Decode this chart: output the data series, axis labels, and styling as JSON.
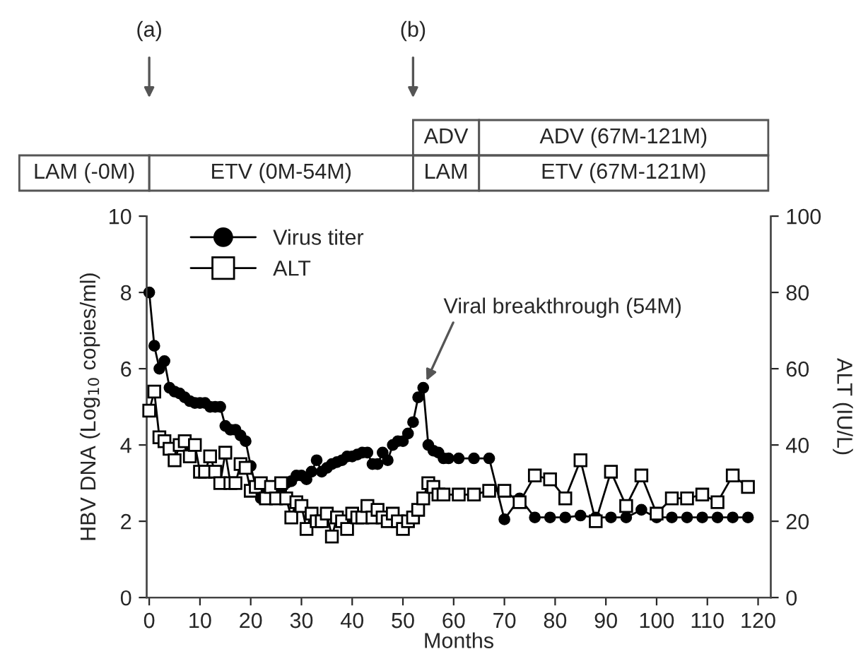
{
  "chart_data": {
    "type": "line",
    "xlabel": "Months",
    "ylabel": "HBV DNA (Log$_{10}$ copies/ml)",
    "y2label": "ALT (IU/L)",
    "xlim": [
      -0.5,
      122.5
    ],
    "xticks": [
      0,
      10,
      20,
      30,
      40,
      50,
      60,
      70,
      80,
      90,
      100,
      110,
      120
    ],
    "ylim": [
      0,
      10
    ],
    "yticks": [
      0,
      2,
      4,
      6,
      8,
      10
    ],
    "y2lim": [
      0,
      100
    ],
    "y2ticks": [
      0,
      20,
      40,
      60,
      80,
      100
    ],
    "grid": false,
    "legend": "top left",
    "line_style": "solid",
    "series": [
      {
        "name": "Virus titer",
        "color": "#000000",
        "marker": "circle",
        "x": [
          0,
          1,
          2,
          3,
          4,
          5,
          6,
          7,
          8,
          9,
          10,
          11,
          12,
          13,
          14,
          15,
          16,
          17,
          18,
          19,
          20,
          21,
          22,
          23,
          24,
          25,
          26,
          27,
          28,
          29,
          30,
          31,
          32,
          33,
          34,
          35,
          36,
          37,
          38,
          39,
          40,
          41,
          42,
          43,
          44,
          45,
          46,
          47,
          48,
          49,
          50,
          51,
          52,
          53,
          54,
          55,
          56,
          57,
          58,
          59,
          61,
          64,
          67,
          70,
          73,
          76,
          79,
          82,
          85,
          88,
          91,
          94,
          97,
          100,
          103,
          106,
          109,
          112,
          115,
          118
        ],
        "values": [
          8.0,
          6.6,
          6.0,
          6.2,
          5.5,
          5.4,
          5.35,
          5.25,
          5.15,
          5.1,
          5.1,
          5.1,
          5.0,
          5.0,
          5.0,
          4.5,
          4.4,
          4.4,
          4.25,
          4.1,
          3.45,
          2.9,
          2.6,
          2.7,
          2.8,
          2.7,
          2.8,
          3.0,
          3.05,
          3.2,
          3.2,
          3.1,
          3.3,
          3.6,
          3.3,
          3.4,
          3.5,
          3.55,
          3.6,
          3.7,
          3.7,
          3.75,
          3.8,
          3.8,
          3.5,
          3.5,
          3.8,
          3.6,
          4.0,
          4.1,
          4.1,
          4.3,
          4.6,
          5.25,
          5.5,
          4.0,
          3.85,
          3.8,
          3.65,
          3.65,
          3.65,
          3.65,
          3.65,
          2.05,
          2.6,
          2.1,
          2.1,
          2.1,
          2.15,
          2.1,
          2.1,
          2.1,
          2.3,
          2.1,
          2.1,
          2.1,
          2.1,
          2.1,
          2.1,
          2.1
        ],
        "axis": "y"
      },
      {
        "name": "ALT",
        "color": "#000000",
        "marker": "square",
        "x": [
          0,
          1,
          2,
          3,
          4,
          5,
          6,
          7,
          8,
          9,
          10,
          11,
          12,
          13,
          14,
          15,
          16,
          17,
          18,
          19,
          20,
          21,
          22,
          23,
          24,
          25,
          26,
          27,
          28,
          29,
          30,
          31,
          32,
          33,
          34,
          35,
          36,
          37,
          38,
          39,
          40,
          41,
          42,
          43,
          44,
          45,
          46,
          47,
          48,
          49,
          50,
          51,
          52,
          53,
          54,
          55,
          56,
          57,
          58,
          61,
          64,
          67,
          70,
          73,
          76,
          79,
          82,
          85,
          88,
          91,
          94,
          97,
          100,
          103,
          106,
          109,
          112,
          115,
          118
        ],
        "values": [
          49,
          54,
          42,
          41,
          39,
          36,
          40,
          41,
          37,
          40,
          33,
          33,
          37,
          33,
          30,
          38,
          30,
          30,
          35,
          34,
          28,
          29,
          30,
          26,
          29,
          26,
          30,
          26,
          21,
          25,
          24,
          18,
          22,
          20,
          20,
          22,
          16,
          21,
          20,
          18,
          22,
          21,
          21,
          24,
          21,
          23,
          21,
          20,
          22,
          20,
          18,
          20,
          21,
          23,
          26,
          30,
          29,
          27,
          27,
          27,
          27,
          28,
          28,
          25,
          32,
          31,
          26,
          36,
          20,
          33,
          24,
          32,
          22,
          26,
          26,
          27,
          25,
          32,
          29
        ],
        "axis": "y2"
      }
    ],
    "annotations": [
      "(a)",
      "(b)",
      "ADV",
      "ADV (67M-121M)",
      "LAM (-0M)",
      "ETV (0M-54M)",
      "LAM",
      "ETV (67M-121M)",
      {
        "text": "Viral breakthrough (54M)",
        "x": 54,
        "y": 5.5
      }
    ]
  }
}
